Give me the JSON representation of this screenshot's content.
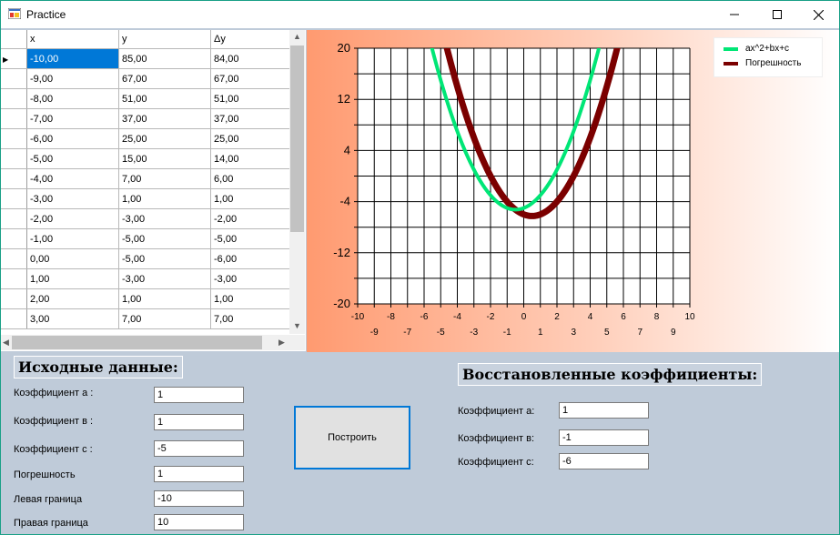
{
  "window": {
    "title": "Practice"
  },
  "titlebar": {
    "minimize": "—",
    "maximize": "☐",
    "close": "✕"
  },
  "grid": {
    "columns": [
      "x",
      "y",
      "Δy"
    ],
    "rows": [
      [
        "-10,00",
        "85,00",
        "84,00"
      ],
      [
        "-9,00",
        "67,00",
        "67,00"
      ],
      [
        "-8,00",
        "51,00",
        "51,00"
      ],
      [
        "-7,00",
        "37,00",
        "37,00"
      ],
      [
        "-6,00",
        "25,00",
        "25,00"
      ],
      [
        "-5,00",
        "15,00",
        "14,00"
      ],
      [
        "-4,00",
        "7,00",
        "6,00"
      ],
      [
        "-3,00",
        "1,00",
        "1,00"
      ],
      [
        "-2,00",
        "-3,00",
        "-2,00"
      ],
      [
        "-1,00",
        "-5,00",
        "-5,00"
      ],
      [
        "0,00",
        "-5,00",
        "-6,00"
      ],
      [
        "1,00",
        "-3,00",
        "-3,00"
      ],
      [
        "2,00",
        "1,00",
        "1,00"
      ],
      [
        "3,00",
        "7,00",
        "7,00"
      ]
    ],
    "current_row_marker": "▶"
  },
  "chart_data": {
    "type": "line",
    "xlim": [
      -10,
      10
    ],
    "ylim": [
      -20,
      20
    ],
    "x_ticks_top_row": [
      "-10",
      "-8",
      "-6",
      "-4",
      "-2",
      "0",
      "2",
      "4",
      "6",
      "8",
      "10"
    ],
    "x_ticks_bottom_row": [
      "-9",
      "-7",
      "-5",
      "-3",
      "-1",
      "1",
      "3",
      "5",
      "7",
      "9"
    ],
    "y_ticks": [
      "20",
      "12",
      "4",
      "-4",
      "-12",
      "-20"
    ],
    "grid": true,
    "legend_position": "top-right",
    "series": [
      {
        "name": "ax^2+bx+c",
        "color": "#00e676",
        "coefficients": [
          1,
          1,
          -5
        ]
      },
      {
        "name": "Погрешность",
        "color": "#7b0000",
        "coefficients": [
          1,
          -1,
          -6
        ]
      }
    ]
  },
  "input": {
    "heading": "Исходные данные:",
    "fields": [
      {
        "label": "Коэффициент а :",
        "value": "1"
      },
      {
        "label": "Коэффициент в :",
        "value": "1"
      },
      {
        "label": "Коэффициент с :",
        "value": "-5"
      },
      {
        "label": "Погрешность",
        "value": "1"
      },
      {
        "label": "Левая граница",
        "value": "-10"
      },
      {
        "label": "Правая граница",
        "value": "10"
      }
    ]
  },
  "build_button": "Построить",
  "output": {
    "heading": "Восстановленные коэффициенты:",
    "fields": [
      {
        "label": "Коэффициент а:",
        "value": "1"
      },
      {
        "label": "Коэффициент в:",
        "value": "-1"
      },
      {
        "label": "Коэффициент с:",
        "value": "-6"
      }
    ]
  }
}
